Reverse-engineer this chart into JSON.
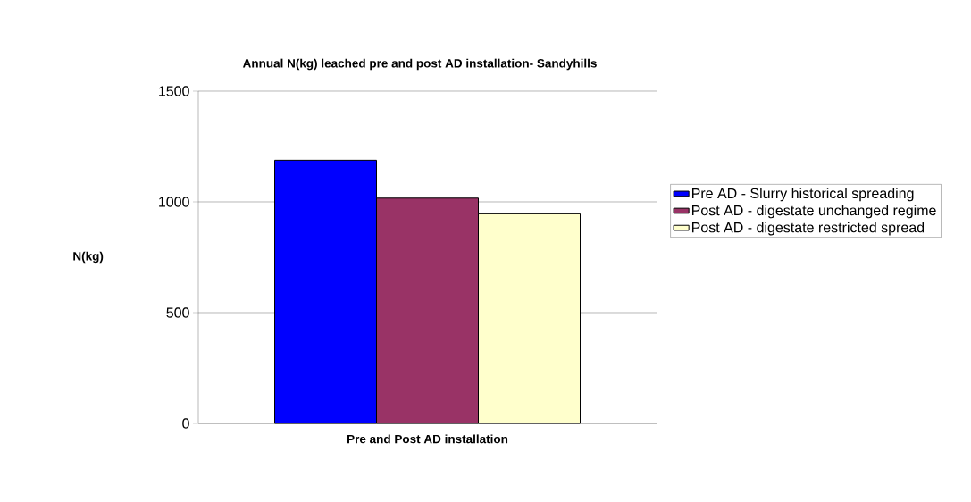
{
  "chart_data": {
    "type": "bar",
    "title": "Annual N(kg) leached pre and post AD installation- Sandyhills",
    "xlabel": "Pre and Post AD installation",
    "ylabel": "N(kg)",
    "categories": [
      null
    ],
    "series": [
      {
        "name": "Pre AD - Slurry historical spreading",
        "color": "#0000ff",
        "values": [
          1188
        ]
      },
      {
        "name": "Post AD - digestate unchanged regime",
        "color": "#993366",
        "values": [
          1017
        ]
      },
      {
        "name": "Post AD - digestate restricted spread",
        "color": "#ffffcc",
        "values": [
          946
        ]
      }
    ],
    "ylim": [
      0,
      1500
    ],
    "yticks": [
      0,
      500,
      1000,
      1500
    ],
    "grid": "y",
    "legend": "right"
  }
}
